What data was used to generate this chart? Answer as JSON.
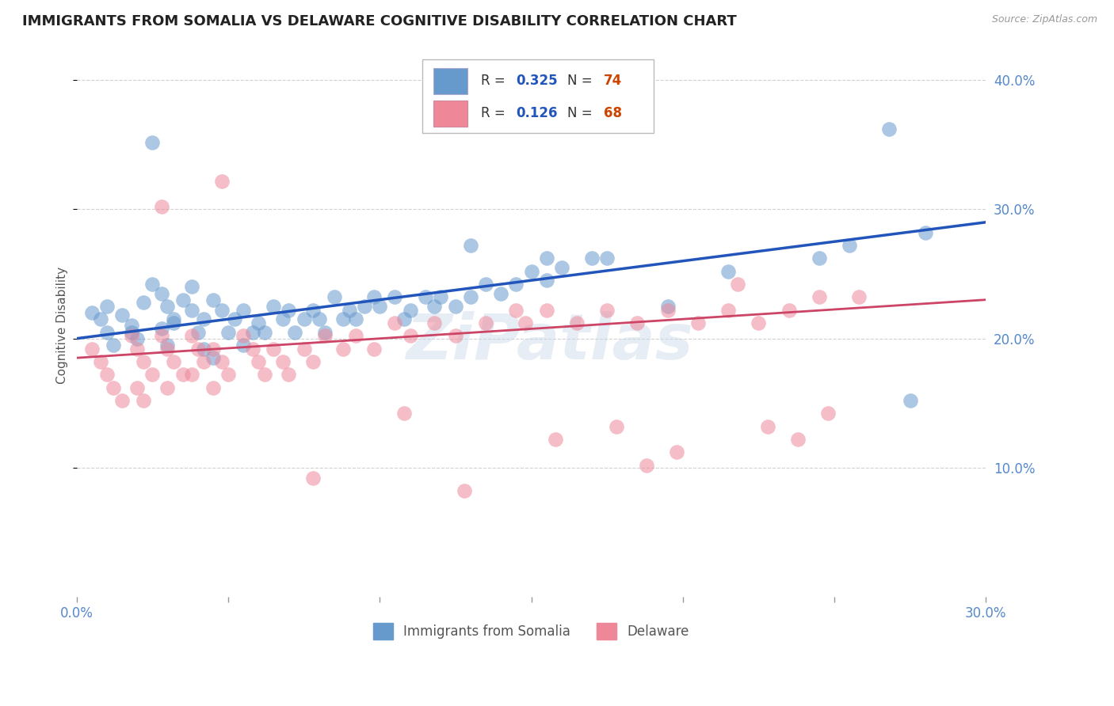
{
  "title": "IMMIGRANTS FROM SOMALIA VS DELAWARE COGNITIVE DISABILITY CORRELATION CHART",
  "source": "Source: ZipAtlas.com",
  "ylabel": "Cognitive Disability",
  "xlim": [
    0.0,
    0.3
  ],
  "ylim": [
    0.0,
    0.42
  ],
  "grid_color": "#cccccc",
  "background_color": "#ffffff",
  "blue_color": "#6699cc",
  "pink_color": "#ee8899",
  "blue_line_color": "#2255bb",
  "pink_line_color": "#cc4466",
  "R_blue": 0.325,
  "N_blue": 74,
  "R_pink": 0.126,
  "N_pink": 68,
  "legend_label_blue": "Immigrants from Somalia",
  "legend_label_pink": "Delaware",
  "blue_scatter_x": [
    0.005,
    0.008,
    0.01,
    0.012,
    0.01,
    0.015,
    0.018,
    0.02,
    0.022,
    0.018,
    0.025,
    0.028,
    0.03,
    0.032,
    0.028,
    0.03,
    0.035,
    0.038,
    0.032,
    0.04,
    0.038,
    0.042,
    0.045,
    0.048,
    0.042,
    0.05,
    0.045,
    0.055,
    0.052,
    0.058,
    0.055,
    0.06,
    0.062,
    0.065,
    0.068,
    0.07,
    0.072,
    0.075,
    0.078,
    0.08,
    0.082,
    0.085,
    0.088,
    0.09,
    0.092,
    0.095,
    0.098,
    0.1,
    0.105,
    0.108,
    0.11,
    0.115,
    0.118,
    0.12,
    0.125,
    0.13,
    0.135,
    0.14,
    0.145,
    0.15,
    0.155,
    0.16,
    0.17,
    0.025,
    0.13,
    0.155,
    0.175,
    0.195,
    0.215,
    0.245,
    0.255,
    0.275,
    0.268,
    0.28
  ],
  "blue_scatter_y": [
    0.22,
    0.215,
    0.205,
    0.195,
    0.225,
    0.218,
    0.21,
    0.2,
    0.228,
    0.205,
    0.242,
    0.235,
    0.225,
    0.215,
    0.208,
    0.195,
    0.23,
    0.222,
    0.212,
    0.205,
    0.24,
    0.192,
    0.23,
    0.222,
    0.215,
    0.205,
    0.185,
    0.222,
    0.215,
    0.205,
    0.195,
    0.212,
    0.205,
    0.225,
    0.215,
    0.222,
    0.205,
    0.215,
    0.222,
    0.215,
    0.205,
    0.232,
    0.215,
    0.222,
    0.215,
    0.225,
    0.232,
    0.225,
    0.232,
    0.215,
    0.222,
    0.232,
    0.225,
    0.232,
    0.225,
    0.232,
    0.242,
    0.235,
    0.242,
    0.252,
    0.245,
    0.255,
    0.262,
    0.352,
    0.272,
    0.262,
    0.262,
    0.225,
    0.252,
    0.262,
    0.272,
    0.152,
    0.362,
    0.282
  ],
  "pink_scatter_x": [
    0.005,
    0.008,
    0.01,
    0.012,
    0.015,
    0.018,
    0.02,
    0.022,
    0.025,
    0.02,
    0.022,
    0.028,
    0.03,
    0.032,
    0.035,
    0.03,
    0.038,
    0.04,
    0.042,
    0.038,
    0.045,
    0.048,
    0.05,
    0.045,
    0.055,
    0.058,
    0.06,
    0.062,
    0.065,
    0.068,
    0.07,
    0.075,
    0.078,
    0.082,
    0.088,
    0.092,
    0.098,
    0.105,
    0.11,
    0.118,
    0.125,
    0.135,
    0.145,
    0.148,
    0.155,
    0.165,
    0.175,
    0.185,
    0.195,
    0.205,
    0.215,
    0.225,
    0.235,
    0.245,
    0.028,
    0.048,
    0.078,
    0.108,
    0.128,
    0.158,
    0.178,
    0.188,
    0.198,
    0.218,
    0.228,
    0.238,
    0.248,
    0.258
  ],
  "pink_scatter_y": [
    0.192,
    0.182,
    0.172,
    0.162,
    0.152,
    0.202,
    0.192,
    0.182,
    0.172,
    0.162,
    0.152,
    0.202,
    0.192,
    0.182,
    0.172,
    0.162,
    0.202,
    0.192,
    0.182,
    0.172,
    0.192,
    0.182,
    0.172,
    0.162,
    0.202,
    0.192,
    0.182,
    0.172,
    0.192,
    0.182,
    0.172,
    0.192,
    0.182,
    0.202,
    0.192,
    0.202,
    0.192,
    0.212,
    0.202,
    0.212,
    0.202,
    0.212,
    0.222,
    0.212,
    0.222,
    0.212,
    0.222,
    0.212,
    0.222,
    0.212,
    0.222,
    0.212,
    0.222,
    0.232,
    0.302,
    0.322,
    0.092,
    0.142,
    0.082,
    0.122,
    0.132,
    0.102,
    0.112,
    0.242,
    0.132,
    0.122,
    0.142,
    0.232
  ]
}
